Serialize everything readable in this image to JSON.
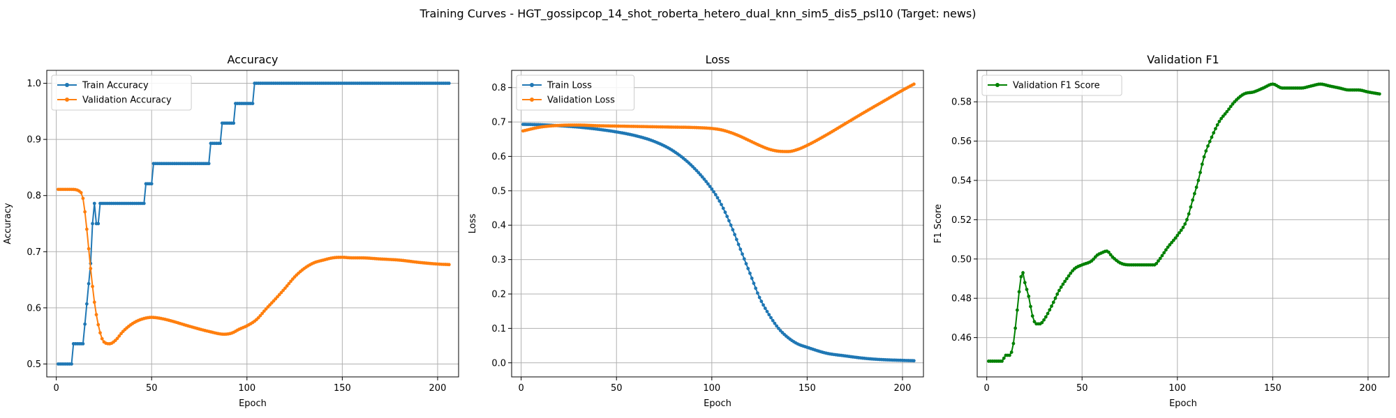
{
  "figure": {
    "suptitle": "Training Curves - HGT_gossipcop_14_shot_roberta_hetero_dual_knn_sim5_dis5_psl10 (Target: news)"
  },
  "colors": {
    "blue": "#1f77b4",
    "orange": "#ff7f0e",
    "green": "#008000",
    "grid": "#b0b0b0"
  },
  "chart_data": [
    {
      "type": "line",
      "title": "Accuracy",
      "xlabel": "Epoch",
      "ylabel": "Accuracy",
      "xlim": [
        -5,
        211
      ],
      "ylim": [
        0.477,
        1.023
      ],
      "xticks": [
        0,
        50,
        100,
        150,
        200
      ],
      "yticks": [
        0.5,
        0.6,
        0.7,
        0.8,
        0.9,
        1.0
      ],
      "ytick_labels": [
        "0.5",
        "0.6",
        "0.7",
        "0.8",
        "0.9",
        "1.0"
      ],
      "grid": true,
      "legend_position": "upper-left",
      "series": [
        {
          "name": "Train Accuracy",
          "color": "#1f77b4",
          "kind": "steps",
          "steps": [
            [
              1,
              0.5
            ],
            [
              9,
              0.536
            ],
            [
              15,
              0.571
            ],
            [
              16,
              0.607
            ],
            [
              17,
              0.643
            ],
            [
              18,
              0.679
            ],
            [
              19,
              0.75
            ],
            [
              20,
              0.786
            ],
            [
              21,
              0.75
            ],
            [
              23,
              0.786
            ],
            [
              47,
              0.821
            ],
            [
              51,
              0.857
            ],
            [
              81,
              0.893
            ],
            [
              87,
              0.929
            ],
            [
              94,
              0.964
            ],
            [
              104,
              1.0
            ],
            [
              206,
              1.0
            ]
          ]
        },
        {
          "name": "Validation Accuracy",
          "color": "#ff7f0e",
          "kind": "curve",
          "points": [
            [
              1,
              0.811
            ],
            [
              8,
              0.811
            ],
            [
              12,
              0.808
            ],
            [
              14,
              0.795
            ],
            [
              16,
              0.74
            ],
            [
              18,
              0.67
            ],
            [
              20,
              0.61
            ],
            [
              22,
              0.57
            ],
            [
              24,
              0.545
            ],
            [
              26,
              0.537
            ],
            [
              28,
              0.536
            ],
            [
              31,
              0.542
            ],
            [
              35,
              0.558
            ],
            [
              40,
              0.572
            ],
            [
              45,
              0.58
            ],
            [
              50,
              0.583
            ],
            [
              55,
              0.581
            ],
            [
              60,
              0.577
            ],
            [
              70,
              0.567
            ],
            [
              80,
              0.558
            ],
            [
              88,
              0.553
            ],
            [
              92,
              0.555
            ],
            [
              96,
              0.562
            ],
            [
              100,
              0.568
            ],
            [
              105,
              0.579
            ],
            [
              110,
              0.598
            ],
            [
              115,
              0.616
            ],
            [
              120,
              0.635
            ],
            [
              125,
              0.655
            ],
            [
              130,
              0.67
            ],
            [
              135,
              0.68
            ],
            [
              140,
              0.685
            ],
            [
              145,
              0.689
            ],
            [
              150,
              0.69
            ],
            [
              155,
              0.689
            ],
            [
              160,
              0.689
            ],
            [
              170,
              0.687
            ],
            [
              180,
              0.685
            ],
            [
              190,
              0.681
            ],
            [
              200,
              0.678
            ],
            [
              206,
              0.677
            ]
          ]
        }
      ]
    },
    {
      "type": "line",
      "title": "Loss",
      "xlabel": "Epoch",
      "ylabel": "Loss",
      "xlim": [
        -5,
        211
      ],
      "ylim": [
        -0.041,
        0.85
      ],
      "xticks": [
        0,
        50,
        100,
        150,
        200
      ],
      "yticks": [
        0.0,
        0.1,
        0.2,
        0.3,
        0.4,
        0.5,
        0.6,
        0.7,
        0.8
      ],
      "ytick_labels": [
        "0.0",
        "0.1",
        "0.2",
        "0.3",
        "0.4",
        "0.5",
        "0.6",
        "0.7",
        "0.8"
      ],
      "grid": true,
      "legend_position": "upper-left",
      "series": [
        {
          "name": "Train Loss",
          "color": "#1f77b4",
          "kind": "curve",
          "points": [
            [
              1,
              0.693
            ],
            [
              10,
              0.692
            ],
            [
              20,
              0.689
            ],
            [
              30,
              0.685
            ],
            [
              40,
              0.679
            ],
            [
              50,
              0.671
            ],
            [
              60,
              0.66
            ],
            [
              70,
              0.643
            ],
            [
              80,
              0.615
            ],
            [
              90,
              0.57
            ],
            [
              100,
              0.505
            ],
            [
              105,
              0.46
            ],
            [
              110,
              0.4
            ],
            [
              115,
              0.33
            ],
            [
              120,
              0.26
            ],
            [
              125,
              0.19
            ],
            [
              130,
              0.14
            ],
            [
              135,
              0.1
            ],
            [
              140,
              0.073
            ],
            [
              145,
              0.055
            ],
            [
              150,
              0.045
            ],
            [
              160,
              0.028
            ],
            [
              170,
              0.02
            ],
            [
              180,
              0.013
            ],
            [
              190,
              0.009
            ],
            [
              200,
              0.007
            ],
            [
              206,
              0.006
            ]
          ]
        },
        {
          "name": "Validation Loss",
          "color": "#ff7f0e",
          "kind": "curve",
          "points": [
            [
              1,
              0.674
            ],
            [
              10,
              0.685
            ],
            [
              20,
              0.69
            ],
            [
              30,
              0.691
            ],
            [
              40,
              0.689
            ],
            [
              50,
              0.688
            ],
            [
              60,
              0.687
            ],
            [
              70,
              0.686
            ],
            [
              80,
              0.685
            ],
            [
              90,
              0.684
            ],
            [
              100,
              0.681
            ],
            [
              105,
              0.677
            ],
            [
              110,
              0.669
            ],
            [
              115,
              0.658
            ],
            [
              120,
              0.645
            ],
            [
              125,
              0.632
            ],
            [
              130,
              0.621
            ],
            [
              135,
              0.615
            ],
            [
              140,
              0.614
            ],
            [
              145,
              0.62
            ],
            [
              150,
              0.632
            ],
            [
              160,
              0.662
            ],
            [
              170,
              0.695
            ],
            [
              180,
              0.728
            ],
            [
              190,
              0.76
            ],
            [
              200,
              0.792
            ],
            [
              206,
              0.81
            ]
          ]
        }
      ]
    },
    {
      "type": "line",
      "title": "Validation F1",
      "xlabel": "Epoch",
      "ylabel": "F1 Score",
      "xlim": [
        -5,
        211
      ],
      "ylim": [
        0.44,
        0.596
      ],
      "xticks": [
        0,
        50,
        100,
        150,
        200
      ],
      "yticks": [
        0.46,
        0.48,
        0.5,
        0.52,
        0.54,
        0.56,
        0.58
      ],
      "ytick_labels": [
        "0.46",
        "0.48",
        "0.50",
        "0.52",
        "0.54",
        "0.56",
        "0.58"
      ],
      "grid": true,
      "legend_position": "upper-left",
      "series": [
        {
          "name": "Validation F1 Score",
          "color": "#008000",
          "kind": "curve",
          "points": [
            [
              1,
              0.448
            ],
            [
              8,
              0.448
            ],
            [
              10,
              0.451
            ],
            [
              12,
              0.451
            ],
            [
              14,
              0.457
            ],
            [
              16,
              0.474
            ],
            [
              18,
              0.491
            ],
            [
              19,
              0.493
            ],
            [
              20,
              0.488
            ],
            [
              22,
              0.481
            ],
            [
              24,
              0.471
            ],
            [
              26,
              0.467
            ],
            [
              28,
              0.467
            ],
            [
              30,
              0.469
            ],
            [
              34,
              0.476
            ],
            [
              38,
              0.484
            ],
            [
              42,
              0.49
            ],
            [
              46,
              0.495
            ],
            [
              50,
              0.497
            ],
            [
              55,
              0.499
            ],
            [
              58,
              0.502
            ],
            [
              60,
              0.503
            ],
            [
              63,
              0.504
            ],
            [
              66,
              0.501
            ],
            [
              70,
              0.498
            ],
            [
              75,
              0.497
            ],
            [
              80,
              0.497
            ],
            [
              85,
              0.497
            ],
            [
              88,
              0.497
            ],
            [
              90,
              0.499
            ],
            [
              95,
              0.506
            ],
            [
              100,
              0.512
            ],
            [
              105,
              0.52
            ],
            [
              108,
              0.53
            ],
            [
              111,
              0.54
            ],
            [
              114,
              0.552
            ],
            [
              118,
              0.562
            ],
            [
              122,
              0.57
            ],
            [
              126,
              0.575
            ],
            [
              130,
              0.58
            ],
            [
              135,
              0.584
            ],
            [
              140,
              0.585
            ],
            [
              145,
              0.587
            ],
            [
              150,
              0.589
            ],
            [
              155,
              0.587
            ],
            [
              160,
              0.587
            ],
            [
              165,
              0.587
            ],
            [
              170,
              0.588
            ],
            [
              175,
              0.589
            ],
            [
              180,
              0.588
            ],
            [
              185,
              0.587
            ],
            [
              190,
              0.586
            ],
            [
              195,
              0.586
            ],
            [
              200,
              0.585
            ],
            [
              206,
              0.584
            ]
          ]
        }
      ]
    }
  ]
}
